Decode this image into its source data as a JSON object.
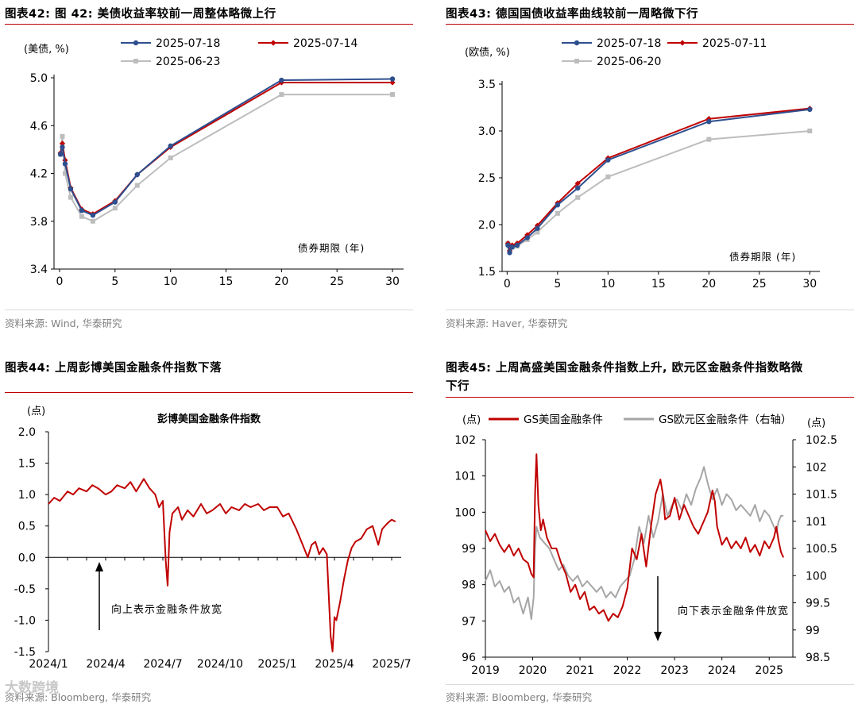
{
  "panels": {
    "p42": {
      "title": "图表42:  图 42: 美债收益率较前一周整体略微上行",
      "source": "资料来源: Wind, 华泰研究"
    },
    "p43": {
      "title": "图表43:  德国国债收益率曲线较前一周略微下行",
      "source": "资料来源: Haver, 华泰研究"
    },
    "p44": {
      "title": "图表44:  上周彭博美国金融条件指数下落",
      "source": "资料来源: Bloomberg, 华泰研究"
    },
    "p45": {
      "title_line1": "图表45:  上周高盛美国金融条件指数上升, 欧元区金融条件指数略微",
      "title_line2": "下行",
      "source": "资料来源:   Bloomberg, 华泰研究"
    }
  },
  "watermark": "大数跨境",
  "chart_data": [
    {
      "id": "c42",
      "type": "line",
      "unit_label": "(美债, %)",
      "annotation": "债券期限 (年)",
      "x": [
        0.08,
        0.25,
        0.5,
        1,
        2,
        3,
        5,
        7,
        10,
        20,
        30
      ],
      "xlim": [
        -0.5,
        31
      ],
      "xticks": [
        0,
        5,
        10,
        15,
        20,
        25,
        30
      ],
      "ylim": [
        3.4,
        5.0
      ],
      "yticks": [
        3.4,
        3.8,
        4.2,
        4.6,
        5.0
      ],
      "legend": "top-left",
      "series": [
        {
          "name": "2025-07-18",
          "color": "#2e4f8f",
          "marker": "circle",
          "values": [
            4.36,
            4.42,
            4.28,
            4.07,
            3.89,
            3.85,
            3.96,
            4.19,
            4.43,
            4.98,
            4.99
          ]
        },
        {
          "name": "2025-07-14",
          "color": "#c00000",
          "marker": "diamond",
          "values": [
            4.37,
            4.45,
            4.31,
            4.08,
            3.9,
            3.86,
            3.97,
            4.19,
            4.42,
            4.96,
            4.96
          ]
        },
        {
          "name": "2025-06-23",
          "color": "#bdbdbd",
          "marker": "square",
          "values": [
            4.36,
            4.51,
            4.2,
            4.0,
            3.84,
            3.8,
            3.91,
            4.1,
            4.33,
            4.86,
            4.86
          ]
        }
      ]
    },
    {
      "id": "c43",
      "type": "line",
      "unit_label": "(欧债, %)",
      "annotation": "债券期限 (年)",
      "x": [
        0.08,
        0.25,
        0.5,
        1,
        2,
        3,
        5,
        7,
        10,
        20,
        30
      ],
      "xlim": [
        -0.5,
        31
      ],
      "xticks": [
        0,
        5,
        10,
        15,
        20,
        25,
        30
      ],
      "ylim": [
        1.5,
        3.5
      ],
      "yticks": [
        1.5,
        2.0,
        2.5,
        3.0,
        3.5
      ],
      "legend": "top-left",
      "series": [
        {
          "name": "2025-07-18",
          "color": "#2e4f8f",
          "marker": "circle",
          "values": [
            1.78,
            1.7,
            1.76,
            1.78,
            1.86,
            1.96,
            2.21,
            2.39,
            2.69,
            3.1,
            3.23
          ]
        },
        {
          "name": "2025-07-11",
          "color": "#c00000",
          "marker": "diamond",
          "values": [
            1.8,
            1.72,
            1.78,
            1.8,
            1.89,
            1.99,
            2.23,
            2.44,
            2.71,
            3.13,
            3.24
          ]
        },
        {
          "name": "2025-06-20",
          "color": "#bdbdbd",
          "marker": "square",
          "values": [
            1.8,
            1.75,
            1.76,
            1.77,
            1.84,
            1.92,
            2.12,
            2.29,
            2.51,
            2.91,
            3.0
          ]
        }
      ]
    },
    {
      "id": "c44",
      "type": "line",
      "title": "彭博美国金融条件指数",
      "unit_label": "(点)",
      "annotation": "向上表示金融条件放宽",
      "xticklabels": [
        "2024/1",
        "2024/4",
        "2024/7",
        "2024/10",
        "2025/1",
        "2025/4",
        "2025/7"
      ],
      "xtick_months": [
        0,
        3,
        6,
        9,
        12,
        15,
        18
      ],
      "xlim_months": [
        0,
        18.5
      ],
      "ylim": [
        -1.5,
        2.0
      ],
      "yticks": [
        -1.5,
        -1.0,
        -0.5,
        0.0,
        0.5,
        1.0,
        1.5,
        2.0
      ],
      "series": [
        {
          "name": "彭博美国金融条件指数",
          "color": "#c00000",
          "months": [
            0,
            0.3,
            0.6,
            1.0,
            1.3,
            1.6,
            2.0,
            2.3,
            2.6,
            3.0,
            3.3,
            3.6,
            4.0,
            4.3,
            4.6,
            5.0,
            5.3,
            5.6,
            5.8,
            6.0,
            6.15,
            6.25,
            6.35,
            6.5,
            6.8,
            7.0,
            7.3,
            7.6,
            8.0,
            8.3,
            8.6,
            9.0,
            9.3,
            9.6,
            10.0,
            10.3,
            10.6,
            11.0,
            11.3,
            11.6,
            12.0,
            12.3,
            12.6,
            13.0,
            13.2,
            13.4,
            13.6,
            13.8,
            14.0,
            14.2,
            14.4,
            14.6,
            14.7,
            14.8,
            14.9,
            15.0,
            15.1,
            15.3,
            15.5,
            15.7,
            15.9,
            16.1,
            16.4,
            16.7,
            17.0,
            17.3,
            17.5,
            17.8,
            18.0,
            18.2
          ],
          "values": [
            0.85,
            0.95,
            0.9,
            1.05,
            1.0,
            1.1,
            1.05,
            1.15,
            1.1,
            1.0,
            1.05,
            1.15,
            1.1,
            1.2,
            1.05,
            1.25,
            1.1,
            1.0,
            0.8,
            0.9,
            -0.05,
            -0.45,
            0.4,
            0.7,
            0.8,
            0.6,
            0.75,
            0.65,
            0.85,
            0.7,
            0.75,
            0.85,
            0.7,
            0.8,
            0.75,
            0.85,
            0.8,
            0.85,
            0.75,
            0.8,
            0.8,
            0.65,
            0.7,
            0.45,
            0.3,
            0.15,
            0.0,
            0.2,
            0.25,
            0.05,
            0.15,
            0.05,
            -0.6,
            -1.25,
            -1.5,
            -0.95,
            -1.0,
            -0.7,
            -0.35,
            -0.05,
            0.15,
            0.25,
            0.3,
            0.45,
            0.5,
            0.2,
            0.45,
            0.55,
            0.6,
            0.57
          ]
        }
      ]
    },
    {
      "id": "c45",
      "type": "line",
      "unit_label_left": "(点)",
      "unit_label_right": "(点)",
      "annotation": "向下表示金融条件放宽",
      "xticklabels": [
        "2019",
        "2020",
        "2021",
        "2022",
        "2023",
        "2024",
        "2025"
      ],
      "xlim": [
        2019.0,
        2025.5
      ],
      "ylim_left": [
        96,
        102
      ],
      "yticks_left": [
        96,
        97,
        98,
        99,
        100,
        101,
        102
      ],
      "ylim_right": [
        98.5,
        102.5
      ],
      "yticks_right": [
        98.5,
        99,
        99.5,
        100,
        100.5,
        101,
        101.5,
        102,
        102.5
      ],
      "legend": "top",
      "series": [
        {
          "name": "GS美国金融条件",
          "axis": "left",
          "color": "#c00000",
          "x": [
            2019.0,
            2019.1,
            2019.2,
            2019.3,
            2019.4,
            2019.5,
            2019.6,
            2019.7,
            2019.8,
            2019.9,
            2019.97,
            2020.02,
            2020.05,
            2020.08,
            2020.12,
            2020.17,
            2020.22,
            2020.3,
            2020.4,
            2020.5,
            2020.6,
            2020.7,
            2020.8,
            2020.9,
            2021.0,
            2021.1,
            2021.2,
            2021.3,
            2021.4,
            2021.5,
            2021.6,
            2021.7,
            2021.8,
            2021.9,
            2022.0,
            2022.1,
            2022.2,
            2022.3,
            2022.4,
            2022.5,
            2022.6,
            2022.7,
            2022.75,
            2022.8,
            2022.9,
            2023.0,
            2023.1,
            2023.2,
            2023.3,
            2023.4,
            2023.5,
            2023.6,
            2023.7,
            2023.8,
            2023.85,
            2023.9,
            2024.0,
            2024.1,
            2024.2,
            2024.3,
            2024.4,
            2024.5,
            2024.6,
            2024.7,
            2024.8,
            2024.9,
            2025.0,
            2025.1,
            2025.15,
            2025.2,
            2025.25,
            2025.3
          ],
          "values": [
            99.5,
            99.2,
            99.4,
            99.1,
            98.9,
            99.1,
            98.8,
            99.0,
            98.7,
            98.6,
            98.3,
            98.2,
            100.5,
            101.6,
            100.2,
            99.5,
            99.8,
            99.3,
            99.0,
            99.0,
            98.6,
            98.3,
            97.8,
            98.0,
            97.6,
            97.8,
            97.3,
            97.4,
            97.2,
            97.3,
            97.0,
            97.2,
            97.1,
            97.4,
            97.9,
            99.0,
            98.7,
            99.4,
            98.5,
            99.6,
            100.5,
            100.9,
            100.5,
            99.8,
            99.9,
            100.4,
            99.8,
            100.2,
            99.9,
            99.6,
            99.4,
            99.7,
            100.0,
            100.6,
            100.3,
            99.6,
            99.1,
            99.3,
            99.0,
            99.2,
            99.0,
            99.3,
            98.9,
            99.1,
            98.8,
            99.2,
            99.0,
            99.3,
            99.6,
            99.2,
            98.9,
            98.75
          ]
        },
        {
          "name": "GS欧元区金融条件（右轴）",
          "axis": "right",
          "color": "#a6a6a6",
          "x": [
            2019.0,
            2019.1,
            2019.2,
            2019.3,
            2019.4,
            2019.5,
            2019.6,
            2019.7,
            2019.8,
            2019.9,
            2019.97,
            2020.02,
            2020.05,
            2020.08,
            2020.15,
            2020.25,
            2020.35,
            2020.45,
            2020.55,
            2020.65,
            2020.75,
            2020.85,
            2020.95,
            2021.05,
            2021.15,
            2021.25,
            2021.35,
            2021.45,
            2021.55,
            2021.65,
            2021.75,
            2021.85,
            2021.95,
            2022.05,
            2022.15,
            2022.25,
            2022.35,
            2022.45,
            2022.55,
            2022.65,
            2022.75,
            2022.85,
            2022.95,
            2023.05,
            2023.15,
            2023.25,
            2023.35,
            2023.45,
            2023.55,
            2023.62,
            2023.7,
            2023.8,
            2023.9,
            2024.0,
            2024.1,
            2024.2,
            2024.3,
            2024.4,
            2024.5,
            2024.6,
            2024.7,
            2024.8,
            2024.9,
            2025.0,
            2025.05,
            2025.1,
            2025.15,
            2025.2,
            2025.25,
            2025.3
          ],
          "values": [
            99.9,
            100.1,
            99.8,
            99.9,
            99.7,
            99.8,
            99.5,
            99.6,
            99.3,
            99.6,
            99.2,
            99.6,
            100.5,
            100.9,
            100.7,
            100.6,
            100.5,
            100.3,
            100.1,
            100.2,
            100.0,
            99.9,
            100.0,
            99.8,
            99.9,
            99.8,
            99.7,
            99.8,
            99.6,
            99.7,
            99.6,
            99.8,
            99.9,
            100.0,
            100.3,
            100.9,
            100.6,
            101.1,
            100.7,
            101.0,
            101.5,
            101.1,
            101.3,
            101.4,
            101.2,
            101.5,
            101.3,
            101.6,
            101.8,
            102.0,
            101.7,
            101.4,
            101.6,
            101.3,
            101.5,
            101.4,
            101.2,
            101.3,
            101.2,
            101.1,
            101.3,
            101.0,
            101.2,
            101.1,
            101.0,
            100.9,
            100.8,
            101.0,
            101.1,
            101.1
          ]
        }
      ]
    }
  ]
}
